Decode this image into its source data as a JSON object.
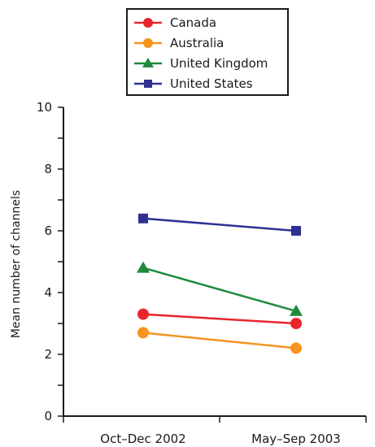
{
  "chart_data": {
    "type": "line",
    "categories": [
      "Oct–Dec 2002",
      "May–Sep 2003"
    ],
    "ylabel": "Mean number of channels",
    "xlabel": "",
    "ylim": [
      0,
      10
    ],
    "yticks": [
      "0",
      "2",
      "4",
      "6",
      "8",
      "10"
    ],
    "legend_position": "top",
    "grid": false,
    "series": [
      {
        "name": "Canada",
        "color": "#e8262c",
        "marker": "circle",
        "values": [
          3.3,
          3.0
        ]
      },
      {
        "name": "Australia",
        "color": "#f7941d",
        "marker": "circle",
        "values": [
          2.7,
          2.2
        ]
      },
      {
        "name": "United Kingdom",
        "color": "#1f8a3c",
        "marker": "triangle",
        "values": [
          4.8,
          3.4
        ]
      },
      {
        "name": "United States",
        "color": "#2e3192",
        "marker": "square",
        "values": [
          6.4,
          6.0
        ]
      }
    ]
  }
}
